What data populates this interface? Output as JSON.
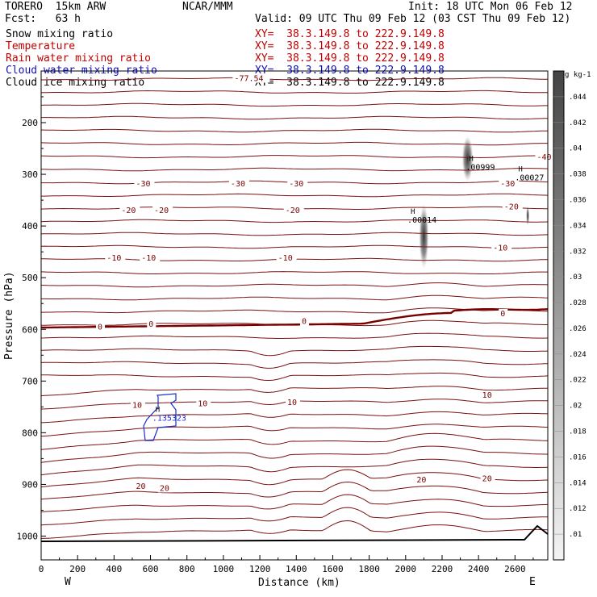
{
  "header": {
    "model": "TORERO  15km ARW",
    "org": "NCAR/MMM",
    "init": "Init: 18 UTC Mon 06 Feb 12",
    "fcst": "Fcst:   63 h",
    "valid": "Valid: 09 UTC Thu 09 Feb 12 (03 CST Thu 09 Feb 12)"
  },
  "legend": [
    {
      "label": "Snow mixing ratio",
      "xy": "XY=  38.3.149.8 to 222.9.149.8",
      "color": "#000000"
    },
    {
      "label": "Temperature",
      "xy": "XY=  38.3.149.8 to 222.9.149.8",
      "color": "#c00000"
    },
    {
      "label": "Rain water mixing ratio",
      "xy": "XY=  38.3.149.8 to 222.9.149.8",
      "color": "#c00000"
    },
    {
      "label": "Cloud water mixing ratio",
      "xy": "XY=  38.3.149.8 to 222.9.149.8",
      "color": "#1010c0"
    },
    {
      "label": "Cloud ice mixing ratio",
      "xy": "XY=  38.3.149.8 to 222.9.149.8",
      "color": "#000000"
    }
  ],
  "colors": {
    "temperature": "#7a1010",
    "zero_line": "#7a0000",
    "cloud_water": "#1a2ecc",
    "terrain": "#000000",
    "axis": "#000000"
  },
  "chart_data": {
    "type": "cross-section contour",
    "xlabel": "Distance (km)",
    "ylabel": "Pressure (hPa)",
    "xlim": [
      0,
      2780
    ],
    "ylim": [
      1050,
      100
    ],
    "x_ticks": [
      0,
      200,
      400,
      600,
      800,
      1000,
      1200,
      1400,
      1600,
      1800,
      2000,
      2200,
      2400,
      2600
    ],
    "y_ticks": [
      200,
      300,
      400,
      500,
      600,
      700,
      800,
      900,
      1000
    ],
    "x_end_labels": {
      "left": "W",
      "right": "E"
    },
    "colorbar": {
      "unit": "g kg-1",
      "values": [
        0.01,
        0.012,
        0.014,
        0.016,
        0.018,
        0.02,
        0.022,
        0.024,
        0.026,
        0.028,
        0.03,
        0.032,
        0.034,
        0.036,
        0.038,
        0.04,
        0.042,
        0.044
      ],
      "labels": [
        ".01",
        ".012",
        ".014",
        ".016",
        ".018",
        ".02",
        ".022",
        ".024",
        ".026",
        ".028",
        ".03",
        ".032",
        ".034",
        ".036",
        ".038",
        ".04",
        ".042",
        ".044"
      ]
    },
    "isotherm_labels": [
      {
        "text": "-77.54",
        "x": 1060,
        "p": 118
      },
      {
        "text": "-40",
        "x": 2720,
        "p": 270
      },
      {
        "text": "-30",
        "x": 520,
        "p": 322
      },
      {
        "text": "-30",
        "x": 1040,
        "p": 322
      },
      {
        "text": "-30",
        "x": 1360,
        "p": 322
      },
      {
        "text": "-30",
        "x": 2520,
        "p": 322
      },
      {
        "text": "-20",
        "x": 440,
        "p": 373
      },
      {
        "text": "-20",
        "x": 620,
        "p": 373
      },
      {
        "text": "-20",
        "x": 1340,
        "p": 373
      },
      {
        "text": "-20",
        "x": 2540,
        "p": 366
      },
      {
        "text": "-10",
        "x": 360,
        "p": 465
      },
      {
        "text": "-10",
        "x": 550,
        "p": 465
      },
      {
        "text": "-10",
        "x": 1300,
        "p": 465
      },
      {
        "text": "-10",
        "x": 2480,
        "p": 446
      },
      {
        "text": "0",
        "x": 310,
        "p": 599
      },
      {
        "text": "0",
        "x": 590,
        "p": 593
      },
      {
        "text": "0",
        "x": 1430,
        "p": 588
      },
      {
        "text": "0",
        "x": 2520,
        "p": 573
      },
      {
        "text": "10",
        "x": 500,
        "p": 750
      },
      {
        "text": "10",
        "x": 860,
        "p": 747
      },
      {
        "text": "10",
        "x": 1350,
        "p": 745
      },
      {
        "text": "10",
        "x": 2420,
        "p": 731
      },
      {
        "text": "20",
        "x": 520,
        "p": 907
      },
      {
        "text": "20",
        "x": 650,
        "p": 911
      },
      {
        "text": "20",
        "x": 2060,
        "p": 895
      },
      {
        "text": "20",
        "x": 2420,
        "p": 892
      }
    ],
    "maxima": [
      {
        "text": ".135323",
        "x": 610,
        "p": 775,
        "series": "cloud water"
      },
      {
        "text": ".00999",
        "x": 2330,
        "p": 290,
        "series": "cloud ice"
      },
      {
        "text": ".00027",
        "x": 2600,
        "p": 310,
        "series": "cloud ice"
      },
      {
        "text": ".00014",
        "x": 2010,
        "p": 392,
        "series": "snow"
      }
    ]
  }
}
